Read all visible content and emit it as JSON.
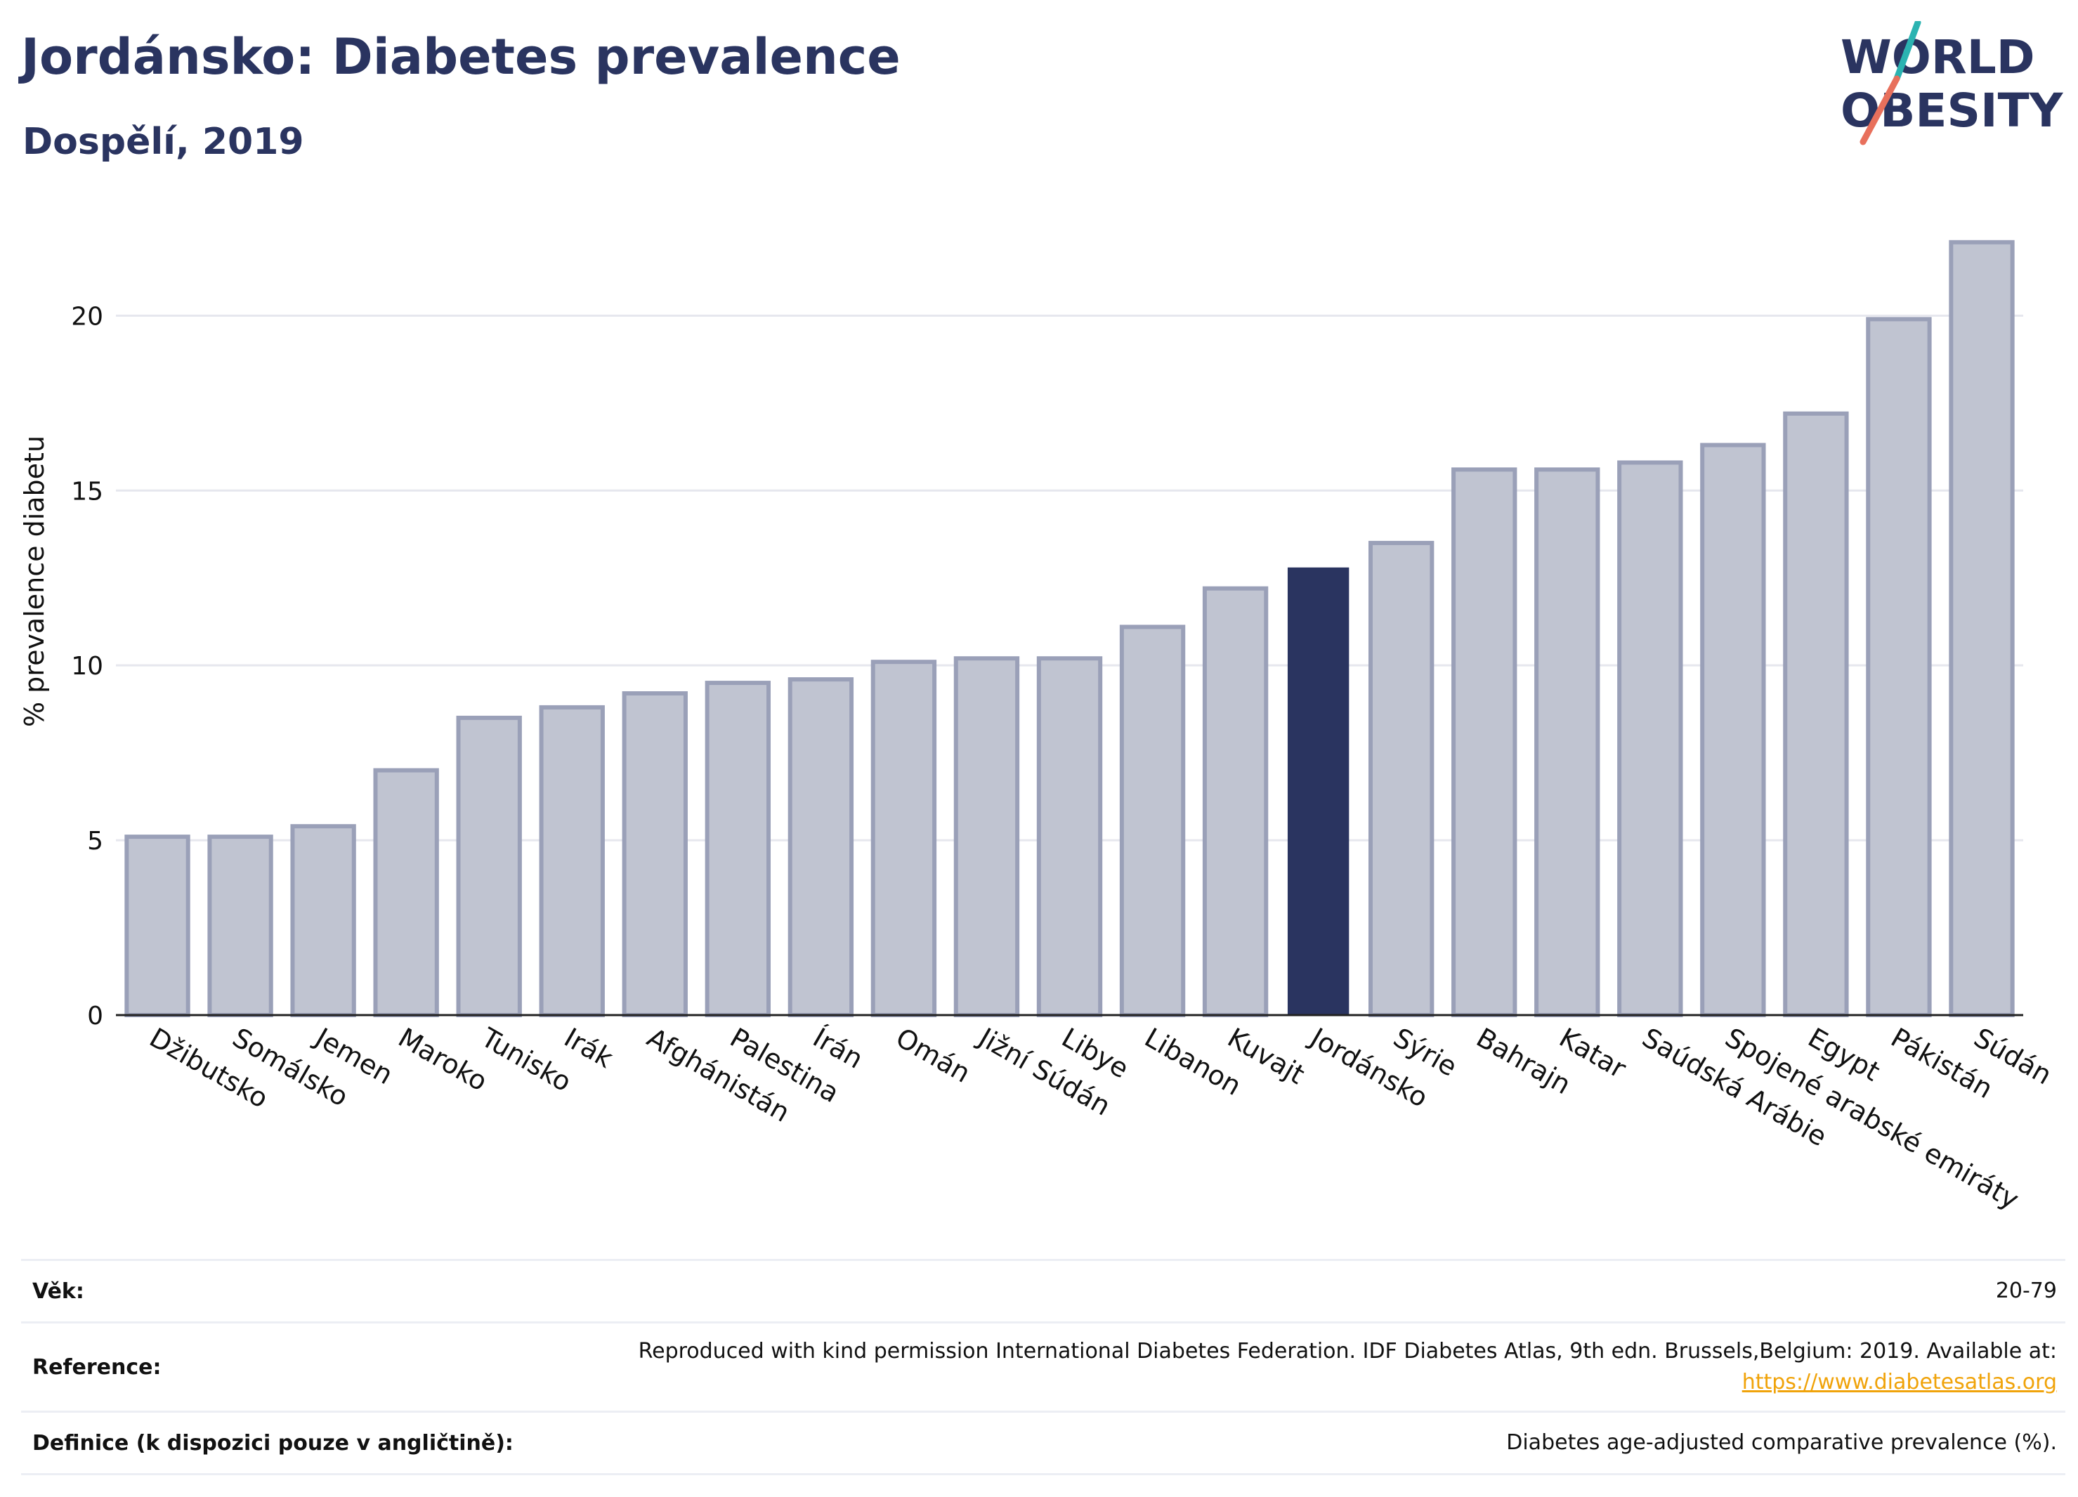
{
  "header": {
    "title": "Jordánsko: Diabetes prevalence",
    "subtitle": "Dospělí, 2019"
  },
  "logo": {
    "line1": "WORLD",
    "line2": "OBESITY"
  },
  "colors": {
    "bar": "#c0c4d1",
    "bar_stroke": "#9aa0b8",
    "highlight": "#2a3460",
    "title": "#2a3460",
    "link": "#f0a30a"
  },
  "chart_data": {
    "type": "bar",
    "ylabel": "% prevalence diabetu",
    "ylim": [
      0,
      23
    ],
    "yticks": [
      0,
      5,
      10,
      15,
      20
    ],
    "grid": true,
    "highlight": "Jordánsko",
    "categories": [
      "Džibutsko",
      "Somálsko",
      "Jemen",
      "Maroko",
      "Tunisko",
      "Irák",
      "Afghánistán",
      "Palestina",
      "Írán",
      "Omán",
      "Jižní Súdán",
      "Libye",
      "Libanon",
      "Kuvajt",
      "Jordánsko",
      "Sýrie",
      "Bahrajn",
      "Katar",
      "Saúdská Arábie",
      "Spojené arabské emiráty",
      "Egypt",
      "Pákistán",
      "Súdán"
    ],
    "values": [
      5.1,
      5.1,
      5.4,
      7.0,
      8.5,
      8.8,
      9.2,
      9.5,
      9.6,
      10.1,
      10.2,
      10.2,
      11.1,
      12.2,
      12.8,
      13.5,
      15.6,
      15.6,
      15.8,
      16.3,
      17.2,
      19.9,
      22.1
    ]
  },
  "info": {
    "age_label": "Věk:",
    "age_value": "20-79",
    "reference_label": "Reference:",
    "reference_text": "Reproduced with kind permission International Diabetes Federation. IDF Diabetes Atlas, 9th edn. Brussels,Belgium: 2019. Available at:",
    "reference_link": "https://www.diabetesatlas.org",
    "definition_label": "Definice (k dispozici pouze v angličtině):",
    "definition_text": "Diabetes age-adjusted comparative prevalence (%)."
  }
}
